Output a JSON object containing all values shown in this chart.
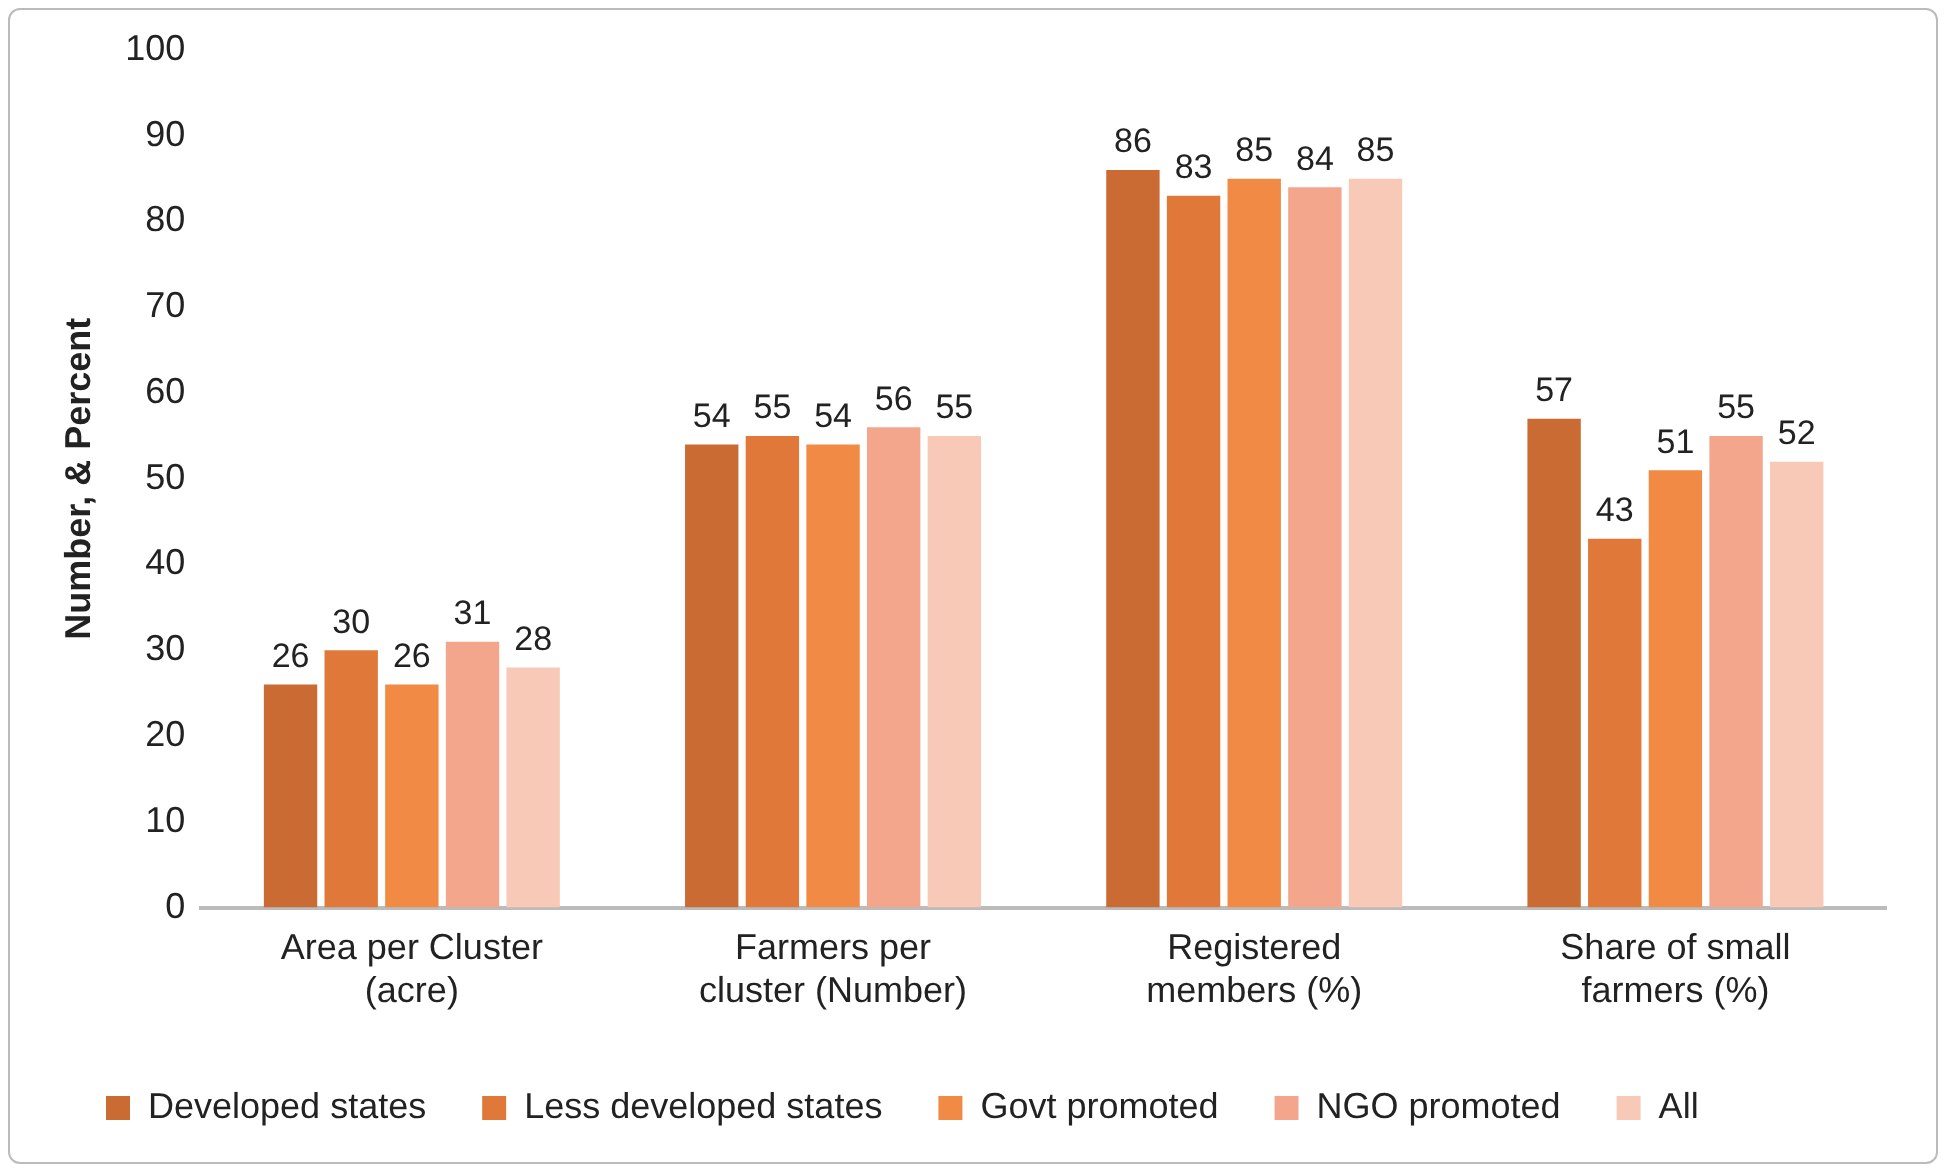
{
  "chart_data": {
    "type": "bar",
    "ylabel": "Number, & Percent",
    "categories": [
      "Area per Cluster\n(acre)",
      "Farmers per\ncluster (Number)",
      "Registered\nmembers (%)",
      "Share of small\nfarmers (%)"
    ],
    "series": [
      {
        "name": "Developed states",
        "color": "#c96b32",
        "values": [
          26,
          54,
          86,
          57
        ]
      },
      {
        "name": "Less developed states",
        "color": "#e0783a",
        "values": [
          30,
          55,
          83,
          43
        ]
      },
      {
        "name": "Govt promoted",
        "color": "#f08a45",
        "values": [
          26,
          54,
          85,
          51
        ]
      },
      {
        "name": "NGO promoted",
        "color": "#f4a68c",
        "values": [
          31,
          56,
          84,
          55
        ]
      },
      {
        "name": "All",
        "color": "#f8c9b6",
        "values": [
          28,
          55,
          85,
          52
        ]
      }
    ],
    "ylim": [
      0,
      100
    ],
    "yticks": [
      0,
      10,
      20,
      30,
      40,
      50,
      60,
      70,
      80,
      90,
      100
    ],
    "grid": false,
    "legend": "bottom",
    "data_labels": true
  }
}
